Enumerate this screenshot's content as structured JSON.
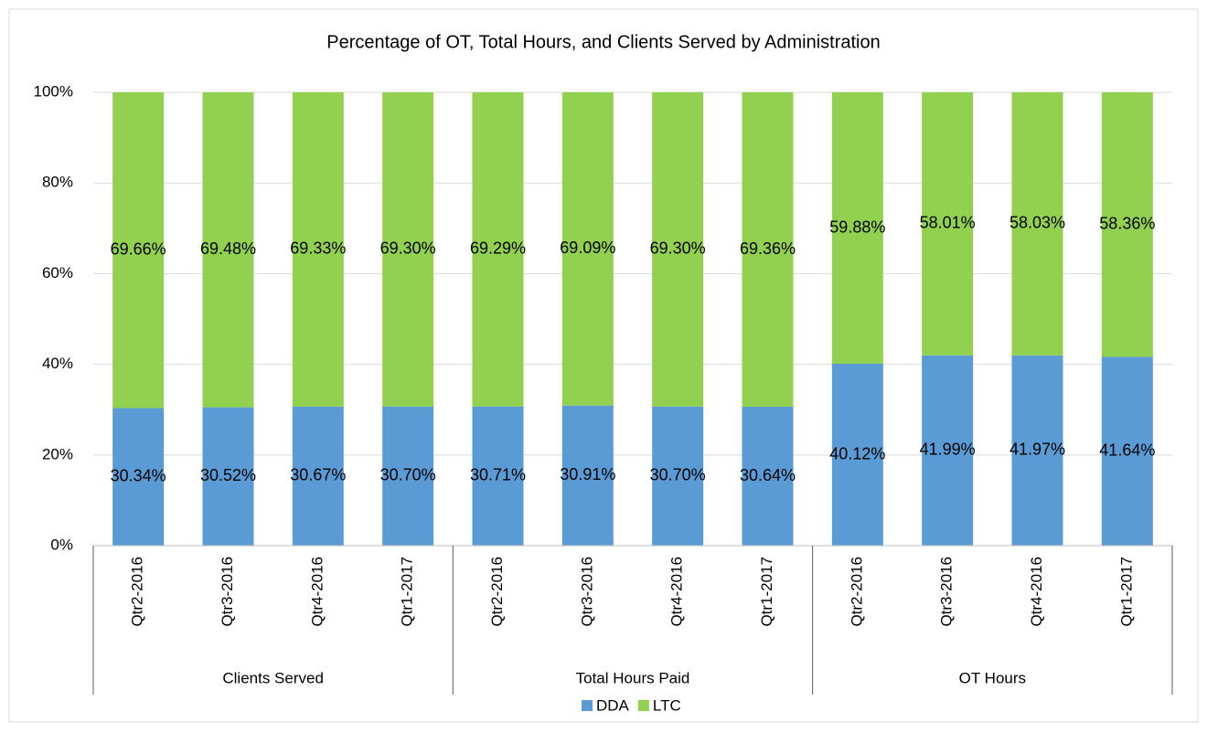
{
  "chart_data": {
    "type": "stacked_bar",
    "title": "Percentage of OT, Total Hours, and Clients Served by Administration",
    "categories": [
      "Qtr2-2016",
      "Qtr3-2016",
      "Qtr4-2016",
      "Qtr1-2017",
      "Qtr2-2016",
      "Qtr3-2016",
      "Qtr4-2016",
      "Qtr1-2017",
      "Qtr2-2016",
      "Qtr3-2016",
      "Qtr4-2016",
      "Qtr1-2017"
    ],
    "category_groups": [
      "Clients Served",
      "Total Hours Paid",
      "OT Hours"
    ],
    "series": [
      {
        "name": "DDA",
        "color": "#5b9bd5",
        "values": [
          30.34,
          30.52,
          30.67,
          30.7,
          30.71,
          30.91,
          30.7,
          30.64,
          40.12,
          41.99,
          41.97,
          41.64
        ],
        "value_labels": [
          "30.34%",
          "30.52%",
          "30.67%",
          "30.70%",
          "30.71%",
          "30.91%",
          "30.70%",
          "30.64%",
          "40.12%",
          "41.99%",
          "41.97%",
          "41.64%"
        ]
      },
      {
        "name": "LTC",
        "color": "#92d050",
        "values": [
          69.66,
          69.48,
          69.33,
          69.3,
          69.29,
          69.09,
          69.3,
          69.36,
          59.88,
          58.01,
          58.03,
          58.36
        ],
        "value_labels": [
          "69.66%",
          "69.48%",
          "69.33%",
          "69.30%",
          "69.29%",
          "69.09%",
          "69.30%",
          "69.36%",
          "59.88%",
          "58.01%",
          "58.03%",
          "58.36%"
        ]
      }
    ],
    "ylim": [
      0,
      100
    ],
    "yticks": [
      {
        "value": 0,
        "label": "0%"
      },
      {
        "value": 20,
        "label": "20%"
      },
      {
        "value": 40,
        "label": "40%"
      },
      {
        "value": 60,
        "label": "60%"
      },
      {
        "value": 80,
        "label": "80%"
      },
      {
        "value": 100,
        "label": "100%"
      }
    ],
    "grid": true,
    "legend": "bottom"
  }
}
